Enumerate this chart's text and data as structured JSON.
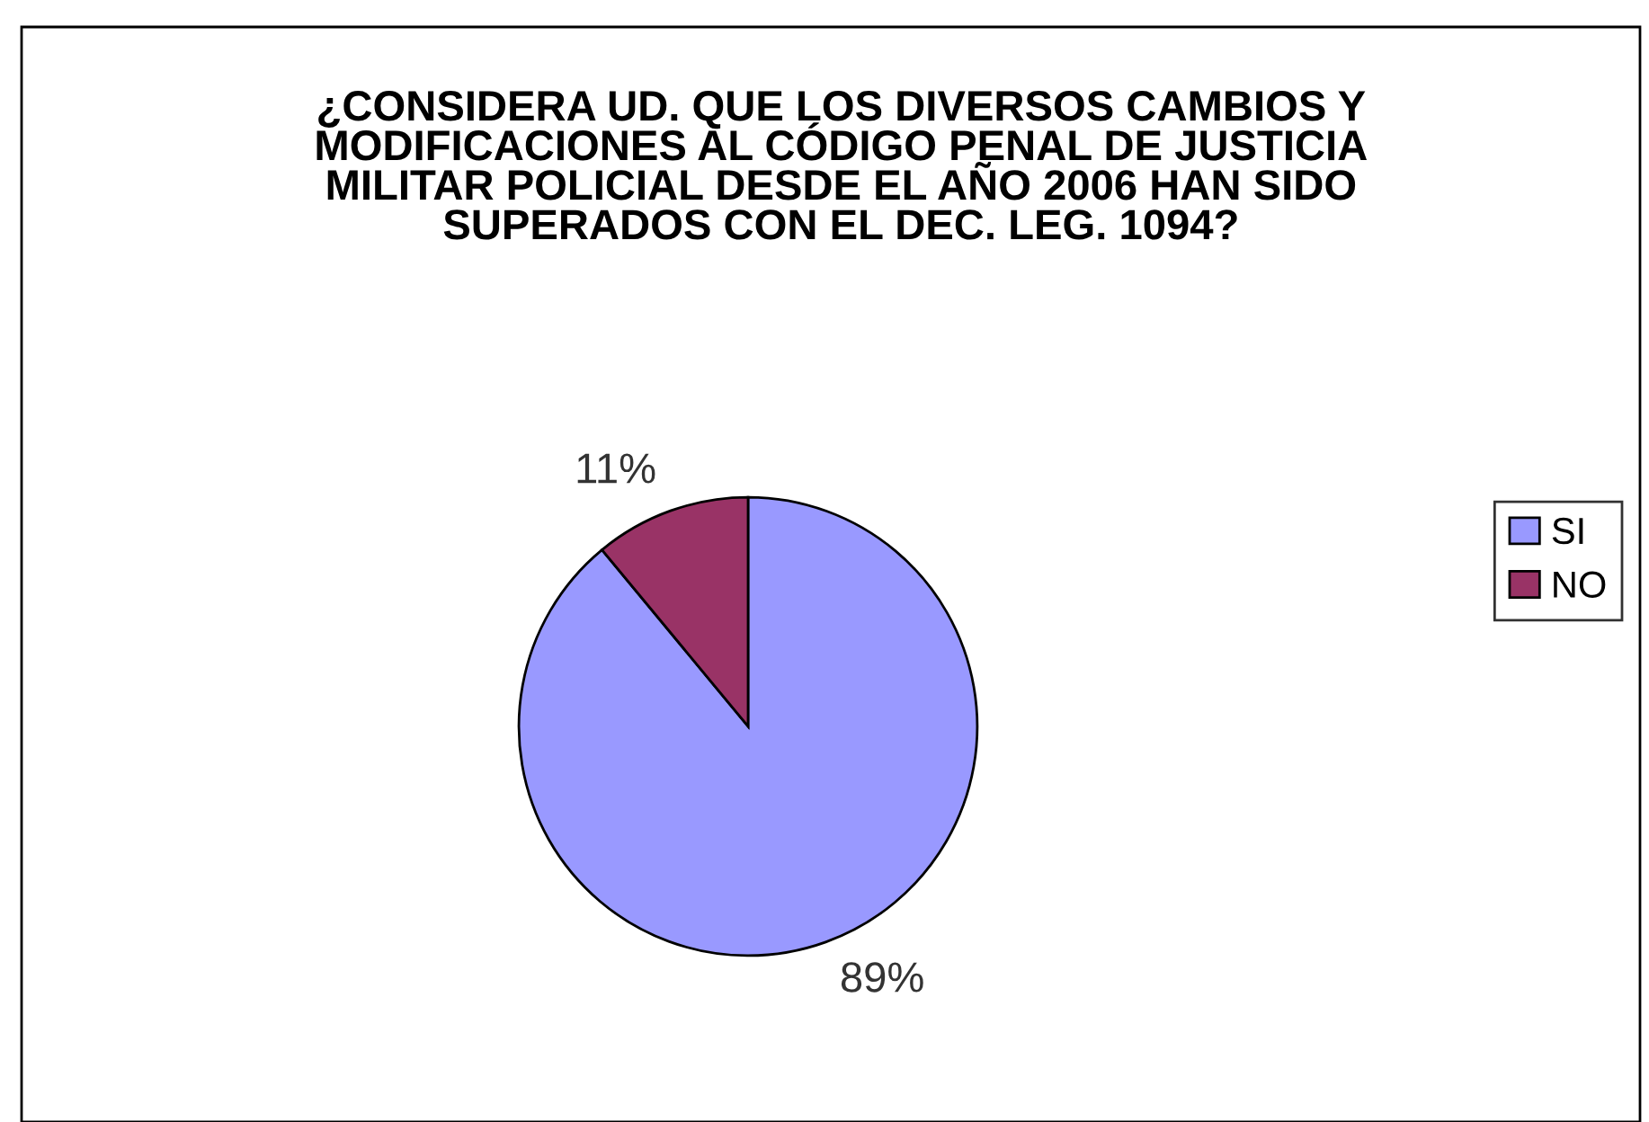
{
  "chart_data": {
    "type": "pie",
    "title": "¿CONSIDERA UD. QUE LOS DIVERSOS CAMBIOS Y\nMODIFICACIONES AL CÓDIGO PENAL DE JUSTICIA\nMILITAR POLICIAL DESDE EL AÑO 2006 HAN SIDO\nSUPERADOS CON EL DEC. LEG. 1094?",
    "categories": [
      "SI",
      "NO"
    ],
    "values": [
      89,
      11
    ],
    "colors": [
      "#9999ff",
      "#993366"
    ],
    "value_labels": [
      "89%",
      "11%"
    ],
    "legend": "right"
  }
}
